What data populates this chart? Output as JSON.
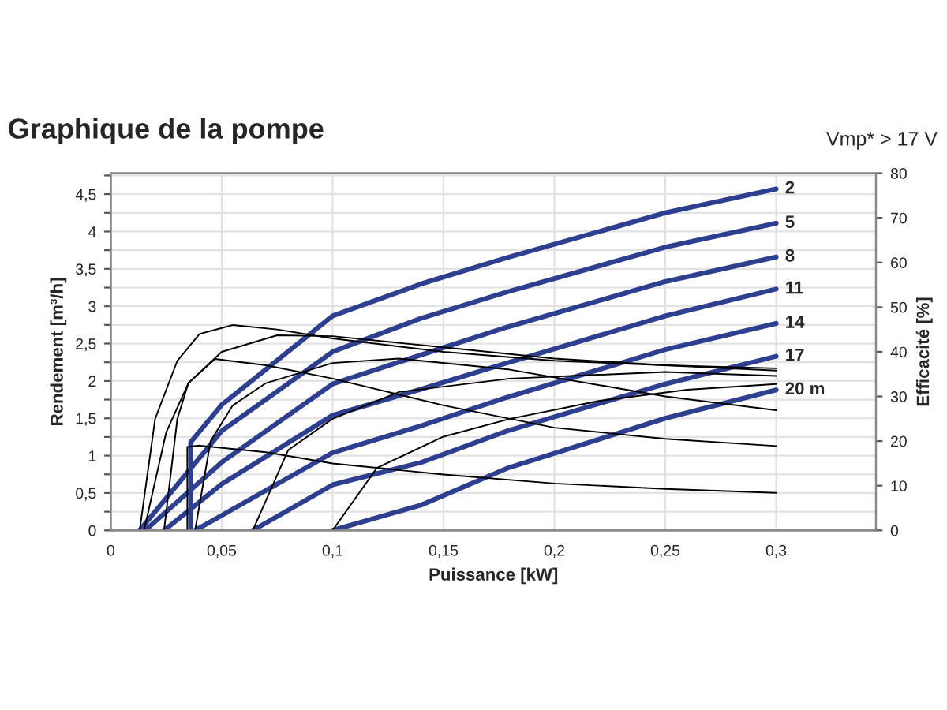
{
  "chart_data": {
    "type": "line",
    "title": "Graphique de la pompe",
    "xlabel": "Puissance [kW]",
    "ylabel": "Rendement [m³/h]",
    "y2label": "Efficacité [%]",
    "annotations": [
      "Vmp* > 17 V"
    ],
    "xlim": [
      0,
      0.345
    ],
    "xticks": [
      0,
      {
        "value": 0.05,
        "label": "0,05"
      },
      {
        "value": 0.1,
        "label": "0,1"
      },
      {
        "value": 0.15,
        "label": "0,15"
      },
      {
        "value": 0.2,
        "label": "0,2"
      },
      {
        "value": 0.25,
        "label": "0,25"
      },
      {
        "value": 0.3,
        "label": "0,3"
      }
    ],
    "ylim": [
      0,
      4.78
    ],
    "yticks": [
      0,
      {
        "value": 0.25,
        "label": null
      },
      {
        "value": 0.5,
        "label": "0,5"
      },
      {
        "value": 0.75,
        "label": null
      },
      1,
      {
        "value": 1.25,
        "label": null
      },
      {
        "value": 1.5,
        "label": "1,5"
      },
      {
        "value": 1.75,
        "label": null
      },
      2,
      {
        "value": 2.25,
        "label": null
      },
      {
        "value": 2.5,
        "label": "2,5"
      },
      {
        "value": 2.75,
        "label": null
      },
      3,
      {
        "value": 3.25,
        "label": null
      },
      {
        "value": 3.5,
        "label": "3,5"
      },
      {
        "value": 3.75,
        "label": null
      },
      4,
      {
        "value": 4.25,
        "label": null
      },
      {
        "value": 4.5,
        "label": "4,5"
      },
      {
        "value": 4.75,
        "label": null
      }
    ],
    "y2lim": [
      0,
      80
    ],
    "y2ticks": [
      0,
      10,
      20,
      30,
      40,
      50,
      60,
      70,
      80
    ],
    "grid": true,
    "legend": false,
    "marker": "none",
    "line_style": "solid",
    "series": [
      {
        "name": "2",
        "color": "#2e3f8f",
        "x": [
          0.036,
          0.036,
          0.05,
          0.1,
          0.14,
          0.1786,
          0.25,
          0.3
        ],
        "values": [
          0,
          1.18,
          1.68,
          2.87,
          3.3,
          3.65,
          4.25,
          4.57
        ]
      },
      {
        "name": "5",
        "color": "#2e3f8f",
        "x": [
          0.013,
          0.05,
          0.1,
          0.14,
          0.1786,
          0.25,
          0.3
        ],
        "values": [
          0,
          1.33,
          2.39,
          2.84,
          3.19,
          3.79,
          4.11
        ]
      },
      {
        "name": "8",
        "color": "#2e3f8f",
        "x": [
          0.0155,
          0.05,
          0.1,
          0.14,
          0.1786,
          0.25,
          0.3
        ],
        "values": [
          0,
          0.91,
          1.96,
          2.35,
          2.72,
          3.33,
          3.66
        ]
      },
      {
        "name": "11",
        "color": "#2e3f8f",
        "x": [
          0.024,
          0.05,
          0.1,
          0.14,
          0.1786,
          0.25,
          0.3
        ],
        "values": [
          0,
          0.62,
          1.54,
          1.89,
          2.24,
          2.87,
          3.23
        ]
      },
      {
        "name": "14",
        "color": "#2e3f8f",
        "x": [
          0.038,
          0.05,
          0.1,
          0.14,
          0.1786,
          0.25,
          0.3
        ],
        "values": [
          0,
          0.2,
          1.04,
          1.4,
          1.78,
          2.42,
          2.77
        ]
      },
      {
        "name": "17",
        "color": "#2e3f8f",
        "x": [
          0.064,
          0.1,
          0.14,
          0.1786,
          0.25,
          0.3
        ],
        "values": [
          0,
          0.61,
          0.91,
          1.33,
          1.96,
          2.33
        ]
      },
      {
        "name": "20 m",
        "color": "#2e3f8f",
        "x": [
          0.1,
          0.14,
          0.1786,
          0.25,
          0.3
        ],
        "values": [
          0,
          0.34,
          0.83,
          1.5,
          1.88
        ]
      },
      {
        "axis": "y2",
        "color": "#000000",
        "x": [
          0.013,
          0.02,
          0.03,
          0.04,
          0.055,
          0.075,
          0.1,
          0.15,
          0.2,
          0.25,
          0.3
        ],
        "values": [
          0,
          25,
          38,
          44,
          46,
          45,
          43,
          40,
          38,
          37,
          36.3
        ]
      },
      {
        "axis": "y2",
        "color": "#000000",
        "x": [
          0.015,
          0.025,
          0.035,
          0.05,
          0.075,
          0.1,
          0.15,
          0.2,
          0.25,
          0.3
        ],
        "values": [
          0,
          22,
          33,
          40,
          43.7,
          43.5,
          41,
          38.5,
          37,
          35.8
        ]
      },
      {
        "axis": "y2",
        "color": "#000000",
        "x": [
          0.024,
          0.03,
          0.035,
          0.047,
          0.07,
          0.1,
          0.15,
          0.2,
          0.25,
          0.3
        ],
        "values": [
          0,
          25,
          33,
          38.4,
          37,
          34,
          28,
          23,
          20.5,
          18.9
        ]
      },
      {
        "axis": "y2",
        "color": "#000000",
        "x": [
          0.0345,
          0.0345,
          0.04,
          0.07,
          0.1,
          0.15,
          0.2,
          0.25,
          0.3
        ],
        "values": [
          0,
          18.7,
          19,
          17.5,
          15,
          12.5,
          10.5,
          9.3,
          8.4
        ]
      },
      {
        "axis": "y2",
        "color": "#000000",
        "x": [
          0.038,
          0.045,
          0.055,
          0.07,
          0.1,
          0.13,
          0.18,
          0.25,
          0.3
        ],
        "values": [
          0,
          20,
          28,
          33,
          37.5,
          38.5,
          36,
          30,
          26.9
        ]
      },
      {
        "axis": "y2",
        "color": "#000000",
        "x": [
          0.064,
          0.08,
          0.1,
          0.13,
          0.18,
          0.25,
          0.3
        ],
        "values": [
          0,
          18,
          25,
          31,
          34,
          35.5,
          34.6
        ]
      },
      {
        "axis": "y2",
        "color": "#000000",
        "x": [
          0.1,
          0.12,
          0.15,
          0.18,
          0.22,
          0.26,
          0.3
        ],
        "values": [
          0,
          14,
          21,
          25,
          29,
          31.5,
          32.8
        ]
      }
    ]
  }
}
